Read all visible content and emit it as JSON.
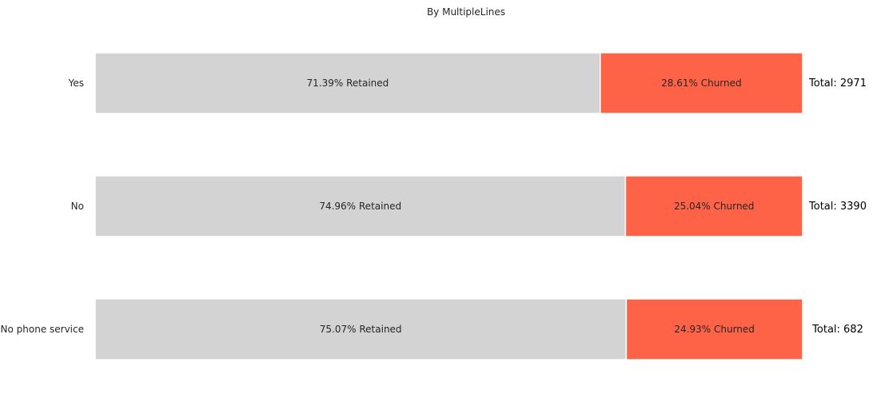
{
  "chart_data": {
    "type": "bar",
    "orientation": "horizontal",
    "stacked": true,
    "percent_stacked": true,
    "title": "By MultipleLines",
    "xlabel": "",
    "ylabel": "",
    "xlim": [
      0,
      100
    ],
    "grid": false,
    "categories": [
      "Yes",
      "No",
      "No phone service"
    ],
    "series": [
      {
        "values": [
          71.39,
          74.96,
          75.07
        ],
        "labels": [
          "71.39% Retained",
          "74.96% Retained",
          "75.07% Retained"
        ],
        "color": "#d3d3d3"
      },
      {
        "values": [
          28.61,
          25.04,
          24.93
        ],
        "labels": [
          "28.61% Churned",
          "25.04% Churned",
          "24.93% Churned"
        ],
        "color": "#ff6347"
      }
    ],
    "totals": [
      "Total: 2971",
      "Total: 3390",
      "Total: 682"
    ]
  }
}
